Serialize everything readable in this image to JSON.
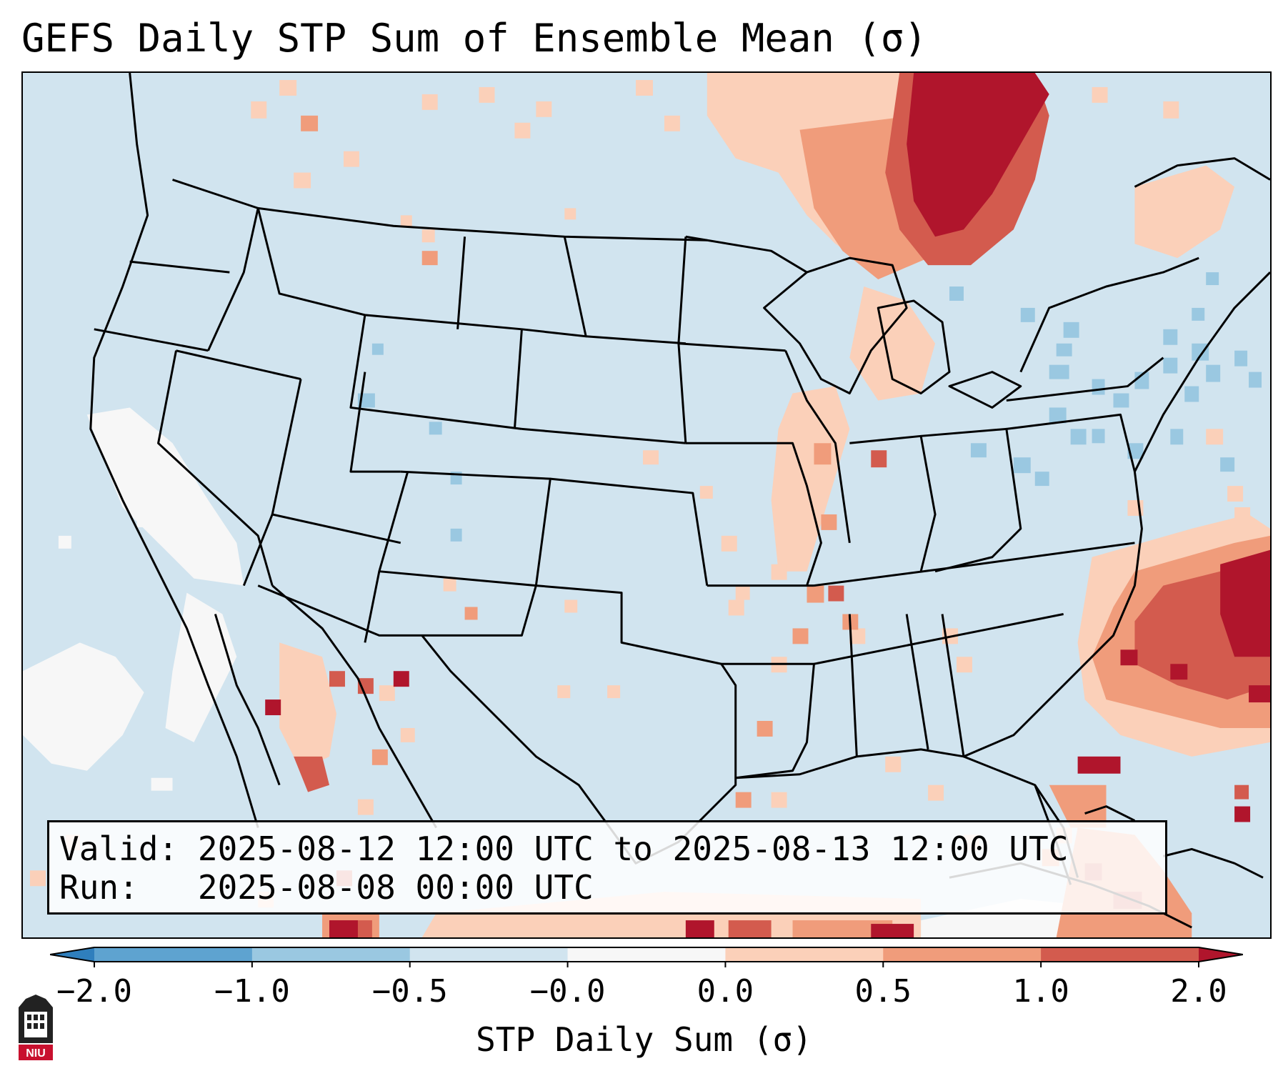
{
  "title": "GEFS Daily STP Sum of Ensemble Mean (σ)",
  "valid_box": {
    "valid_label": "Valid:",
    "valid_value": "2025-08-12 12:00 UTC to 2025-08-13 12:00 UTC",
    "run_label": "Run:",
    "run_value": "2025-08-08 00:00 UTC"
  },
  "colorbar": {
    "label": "STP Daily Sum (σ)",
    "ticks": [
      "−2.0",
      "−1.0",
      "−0.5",
      "−0.0",
      "0.0",
      "0.5",
      "1.0",
      "2.0"
    ],
    "colors": [
      "#2f7fbd",
      "#5ea3d0",
      "#9ac8e1",
      "#d1e4ef",
      "#f7f7f7",
      "#fbd0b9",
      "#f09c7b",
      "#d35b4e",
      "#b0152c"
    ],
    "extend": "both"
  },
  "colors": {
    "background": "#d1e4ef",
    "state_lines": "#000000",
    "neutral_white": "#f7f7f7",
    "light_blue": "#9ac8e1",
    "light_red": "#fbd0b9",
    "mid_red": "#f09c7b",
    "red": "#d35b4e",
    "dark_red": "#b0152c"
  },
  "logo": {
    "text": "NIU",
    "icon": "niu-logo-icon"
  }
}
